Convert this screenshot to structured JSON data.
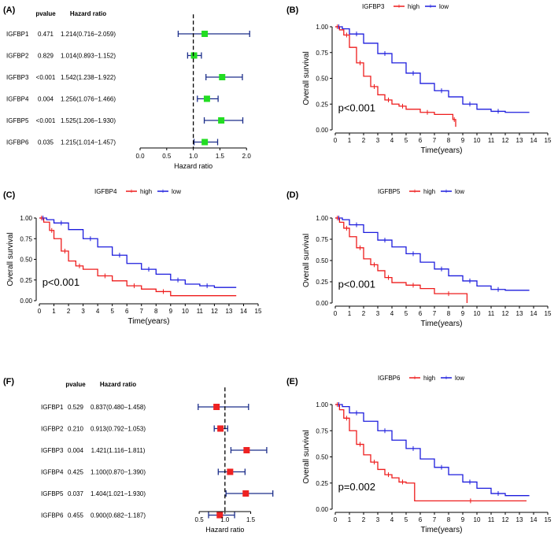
{
  "chart_data": [
    {
      "type": "forest",
      "panel": "(A)",
      "col_pvalue": "pvalue",
      "col_hr": "Hazard ratio",
      "xlabel": "Hazard ratio",
      "xlim": [
        0,
        2.1
      ],
      "ticks": [
        "0.0",
        "0.5",
        "1.0",
        "1.5",
        "2.0"
      ],
      "tick_values": [
        0,
        0.5,
        1.0,
        1.5,
        2.0
      ],
      "ref_line": 1.0,
      "marker_color": "#22dd22",
      "rows": [
        {
          "name": "IGFBP1",
          "pvalue": "0.471",
          "hr_text": "1.214(0.716−2.059)",
          "hr": 1.214,
          "lo": 0.716,
          "hi": 2.059
        },
        {
          "name": "IGFBP2",
          "pvalue": "0.829",
          "hr_text": "1.014(0.893−1.152)",
          "hr": 1.014,
          "lo": 0.893,
          "hi": 1.152
        },
        {
          "name": "IGFBP3",
          "pvalue": "<0.001",
          "hr_text": "1.542(1.238−1.922)",
          "hr": 1.542,
          "lo": 1.238,
          "hi": 1.922
        },
        {
          "name": "IGFBP4",
          "pvalue": "0.004",
          "hr_text": "1.256(1.076−1.466)",
          "hr": 1.256,
          "lo": 1.076,
          "hi": 1.466
        },
        {
          "name": "IGFBP5",
          "pvalue": "<0.001",
          "hr_text": "1.525(1.206−1.930)",
          "hr": 1.525,
          "lo": 1.206,
          "hi": 1.93
        },
        {
          "name": "IGFBP6",
          "pvalue": "0.035",
          "hr_text": "1.215(1.014−1.457)",
          "hr": 1.215,
          "lo": 1.014,
          "hi": 1.457
        }
      ]
    },
    {
      "type": "km",
      "panel": "(B)",
      "gene": "IGFBP3",
      "legend": [
        "high",
        "low"
      ],
      "colors": {
        "high": "#ee1c1c",
        "low": "#1c1cdd"
      },
      "pvalue": "p<0.001",
      "xlabel": "Time(years)",
      "ylabel": "Overall survival",
      "xticks": [
        "0",
        "1",
        "2",
        "3",
        "4",
        "5",
        "6",
        "7",
        "8",
        "9",
        "10",
        "11",
        "12",
        "13",
        "14",
        "15"
      ],
      "yticks": [
        "0.00",
        "0.25",
        "0.50",
        "0.75",
        "1.00"
      ],
      "xlim": [
        0,
        15
      ],
      "ylim": [
        0,
        1
      ],
      "high": [
        [
          0,
          1
        ],
        [
          0.3,
          0.97
        ],
        [
          0.6,
          0.92
        ],
        [
          1.0,
          0.8
        ],
        [
          1.5,
          0.65
        ],
        [
          2.0,
          0.52
        ],
        [
          2.5,
          0.42
        ],
        [
          3.0,
          0.34
        ],
        [
          3.5,
          0.29
        ],
        [
          4.0,
          0.25
        ],
        [
          4.5,
          0.23
        ],
        [
          5.0,
          0.2
        ],
        [
          6.0,
          0.17
        ],
        [
          7.0,
          0.15
        ],
        [
          8.3,
          0.1
        ],
        [
          8.5,
          0.03
        ]
      ],
      "low": [
        [
          0,
          1
        ],
        [
          0.5,
          0.98
        ],
        [
          1.0,
          0.93
        ],
        [
          2.0,
          0.84
        ],
        [
          3.0,
          0.74
        ],
        [
          4.0,
          0.65
        ],
        [
          5.0,
          0.55
        ],
        [
          6.0,
          0.45
        ],
        [
          7.0,
          0.38
        ],
        [
          8.0,
          0.32
        ],
        [
          9.0,
          0.25
        ],
        [
          10.0,
          0.2
        ],
        [
          11.0,
          0.18
        ],
        [
          12.0,
          0.17
        ],
        [
          13.7,
          0.17
        ]
      ]
    },
    {
      "type": "km",
      "panel": "(C)",
      "gene": "IGFBP4",
      "legend": [
        "high",
        "low"
      ],
      "colors": {
        "high": "#ee1c1c",
        "low": "#1c1cdd"
      },
      "pvalue": "p<0.001",
      "xlabel": "Time(years)",
      "ylabel": "Overall survival",
      "xticks": [
        "0",
        "1",
        "2",
        "3",
        "4",
        "5",
        "6",
        "7",
        "8",
        "9",
        "10",
        "11",
        "12",
        "13",
        "14",
        "15"
      ],
      "yticks": [
        "0.00",
        "0.25",
        "0.50",
        "0.75",
        "1.00"
      ],
      "xlim": [
        0,
        15
      ],
      "ylim": [
        0,
        1
      ],
      "high": [
        [
          0,
          1
        ],
        [
          0.3,
          0.95
        ],
        [
          0.7,
          0.85
        ],
        [
          1.0,
          0.75
        ],
        [
          1.5,
          0.6
        ],
        [
          2.0,
          0.48
        ],
        [
          2.5,
          0.42
        ],
        [
          3.0,
          0.38
        ],
        [
          4.0,
          0.3
        ],
        [
          5.0,
          0.24
        ],
        [
          6.0,
          0.18
        ],
        [
          7.0,
          0.14
        ],
        [
          8.0,
          0.11
        ],
        [
          9.0,
          0.06
        ],
        [
          13.5,
          0.06
        ]
      ],
      "low": [
        [
          0,
          1
        ],
        [
          0.5,
          0.98
        ],
        [
          1.0,
          0.94
        ],
        [
          2.0,
          0.86
        ],
        [
          3.0,
          0.75
        ],
        [
          4.0,
          0.65
        ],
        [
          5.0,
          0.55
        ],
        [
          6.0,
          0.45
        ],
        [
          7.0,
          0.38
        ],
        [
          8.0,
          0.32
        ],
        [
          9.0,
          0.25
        ],
        [
          10.0,
          0.2
        ],
        [
          11.0,
          0.18
        ],
        [
          12.0,
          0.16
        ],
        [
          13.5,
          0.16
        ]
      ]
    },
    {
      "type": "km",
      "panel": "(D)",
      "gene": "IGFBP5",
      "legend": [
        "high",
        "low"
      ],
      "colors": {
        "high": "#ee1c1c",
        "low": "#1c1cdd"
      },
      "pvalue": "p<0.001",
      "xlabel": "Time(years)",
      "ylabel": "Overall survival",
      "xticks": [
        "0",
        "1",
        "2",
        "3",
        "4",
        "5",
        "6",
        "7",
        "8",
        "9",
        "10",
        "11",
        "12",
        "13",
        "14",
        "15"
      ],
      "yticks": [
        "0.00",
        "0.25",
        "0.50",
        "0.75",
        "1.00"
      ],
      "xlim": [
        0,
        15
      ],
      "ylim": [
        0,
        1
      ],
      "high": [
        [
          0,
          1
        ],
        [
          0.3,
          0.95
        ],
        [
          0.6,
          0.88
        ],
        [
          1.0,
          0.78
        ],
        [
          1.5,
          0.65
        ],
        [
          2.0,
          0.52
        ],
        [
          2.5,
          0.45
        ],
        [
          3.0,
          0.38
        ],
        [
          3.5,
          0.3
        ],
        [
          4.0,
          0.24
        ],
        [
          5.0,
          0.21
        ],
        [
          6.0,
          0.17
        ],
        [
          7.0,
          0.11
        ],
        [
          9.0,
          0.11
        ],
        [
          9.3,
          0.0
        ]
      ],
      "low": [
        [
          0,
          1
        ],
        [
          0.5,
          0.98
        ],
        [
          1.0,
          0.92
        ],
        [
          2.0,
          0.83
        ],
        [
          3.0,
          0.74
        ],
        [
          4.0,
          0.66
        ],
        [
          5.0,
          0.58
        ],
        [
          6.0,
          0.48
        ],
        [
          7.0,
          0.4
        ],
        [
          8.0,
          0.32
        ],
        [
          9.0,
          0.26
        ],
        [
          10.0,
          0.2
        ],
        [
          11.0,
          0.16
        ],
        [
          12.0,
          0.15
        ],
        [
          13.7,
          0.15
        ]
      ]
    },
    {
      "type": "forest",
      "panel": "(F)",
      "col_pvalue": "pvalue",
      "col_hr": "Hazard ratio",
      "xlabel": "Hazard ratio",
      "xlim": [
        0.3,
        1.95
      ],
      "ticks": [
        "0.5",
        "1.0",
        "1.5"
      ],
      "tick_values": [
        0.5,
        1.0,
        1.5
      ],
      "ref_line": 1.0,
      "marker_color": "#ee2222",
      "rows": [
        {
          "name": "IGFBP1",
          "pvalue": "0.529",
          "hr_text": "0.837(0.480−1.458)",
          "hr": 0.837,
          "lo": 0.48,
          "hi": 1.458
        },
        {
          "name": "IGFBP2",
          "pvalue": "0.210",
          "hr_text": "0.913(0.792−1.053)",
          "hr": 0.913,
          "lo": 0.792,
          "hi": 1.053
        },
        {
          "name": "IGFBP3",
          "pvalue": "0.004",
          "hr_text": "1.421(1.116−1.811)",
          "hr": 1.421,
          "lo": 1.116,
          "hi": 1.811
        },
        {
          "name": "IGFBP4",
          "pvalue": "0.425",
          "hr_text": "1.100(0.870−1.390)",
          "hr": 1.1,
          "lo": 0.87,
          "hi": 1.39
        },
        {
          "name": "IGFBP5",
          "pvalue": "0.037",
          "hr_text": "1.404(1.021−1.930)",
          "hr": 1.404,
          "lo": 1.021,
          "hi": 1.93
        },
        {
          "name": "IGFBP6",
          "pvalue": "0.455",
          "hr_text": "0.900(0.682−1.187)",
          "hr": 0.9,
          "lo": 0.682,
          "hi": 1.187
        }
      ]
    },
    {
      "type": "km",
      "panel": "(E)",
      "gene": "IGFBP6",
      "legend": [
        "high",
        "low"
      ],
      "colors": {
        "high": "#ee1c1c",
        "low": "#1c1cdd"
      },
      "pvalue": "p=0.002",
      "xlabel": "Time(years)",
      "ylabel": "Overall survival",
      "xticks": [
        "0",
        "1",
        "2",
        "3",
        "4",
        "5",
        "6",
        "7",
        "8",
        "9",
        "10",
        "11",
        "12",
        "13",
        "14",
        "15"
      ],
      "yticks": [
        "0.00",
        "0.25",
        "0.50",
        "0.75",
        "1.00"
      ],
      "xlim": [
        0,
        15
      ],
      "ylim": [
        0,
        1
      ],
      "high": [
        [
          0,
          1
        ],
        [
          0.3,
          0.95
        ],
        [
          0.6,
          0.87
        ],
        [
          1.0,
          0.75
        ],
        [
          1.5,
          0.62
        ],
        [
          2.0,
          0.52
        ],
        [
          2.5,
          0.45
        ],
        [
          3.0,
          0.38
        ],
        [
          3.5,
          0.33
        ],
        [
          4.0,
          0.3
        ],
        [
          4.5,
          0.26
        ],
        [
          5.0,
          0.25
        ],
        [
          5.6,
          0.08
        ],
        [
          13.5,
          0.08
        ]
      ],
      "low": [
        [
          0,
          1
        ],
        [
          0.5,
          0.98
        ],
        [
          1.0,
          0.92
        ],
        [
          2.0,
          0.84
        ],
        [
          3.0,
          0.75
        ],
        [
          4.0,
          0.66
        ],
        [
          5.0,
          0.58
        ],
        [
          6.0,
          0.48
        ],
        [
          7.0,
          0.4
        ],
        [
          8.0,
          0.33
        ],
        [
          9.0,
          0.26
        ],
        [
          10.0,
          0.2
        ],
        [
          11.0,
          0.15
        ],
        [
          12.0,
          0.13
        ],
        [
          13.7,
          0.13
        ]
      ]
    }
  ]
}
